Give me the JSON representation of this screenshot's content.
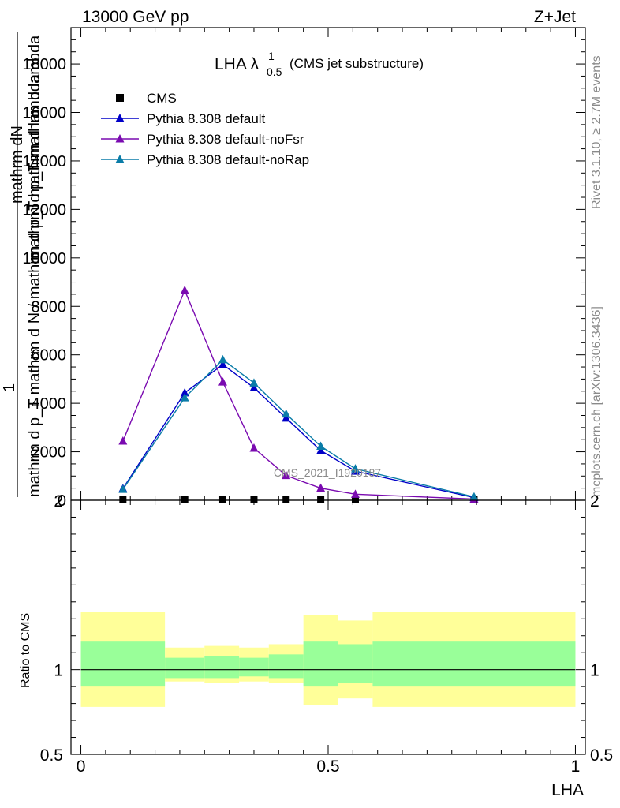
{
  "header": {
    "left": "13000 GeV pp",
    "right": "Z+Jet"
  },
  "side_labels": {
    "rivet": "Rivet 3.1.10, ≥ 2.7M events",
    "mcplots": "mcplots.cern.ch [arXiv:1306.3436]"
  },
  "watermark": "CMS_2021_I1920187",
  "chart_data": [
    {
      "type": "line",
      "title": "LHA λ",
      "title_sup": "1",
      "title_sub": "0.5",
      "title_note": "(CMS jet substructure)",
      "ylabel_top": "mathrm d^{2}N",
      "ylabel_top_display": "mathrm d N",
      "ylabel_lines": [
        "mathrm dN",
        "mathrm d p_T mathrm d lambda",
        "mathrm d p_T mathrm d N / mathrm d p_T mathrm d lambda"
      ],
      "ylabel_one": "1",
      "ylabel_bottom": "mathrm d N / mathrm d p_T",
      "ylim": [
        0,
        19500
      ],
      "yticks": [
        {
          "v": 0,
          "label": "0"
        },
        {
          "v": 2000,
          "label": "2000"
        },
        {
          "v": 4000,
          "label": "4000"
        },
        {
          "v": 6000,
          "label": "6000"
        },
        {
          "v": 8000,
          "label": "8000"
        },
        {
          "v": 10000,
          "label": "10000"
        },
        {
          "v": 12000,
          "label": "12000"
        },
        {
          "v": 14000,
          "label": "14000"
        },
        {
          "v": 16000,
          "label": "16000"
        },
        {
          "v": 18000,
          "label": "18000"
        }
      ],
      "xlim": [
        -0.02,
        1.02
      ],
      "legend": {
        "position": "top-left",
        "entries": [
          "CMS",
          "Pythia 8.308 default",
          "Pythia 8.308 default-noFsr",
          "Pythia 8.308 default-noRap"
        ]
      },
      "series": [
        {
          "name": "CMS",
          "marker": "square",
          "color": "#000000",
          "x": [
            0.085,
            0.21,
            0.287,
            0.35,
            0.415,
            0.485,
            0.555,
            0.795
          ],
          "y": [
            20,
            20,
            20,
            20,
            20,
            20,
            20,
            20
          ]
        },
        {
          "name": "Pythia 8.308 default",
          "marker": "triangle",
          "color": "#0000c8",
          "x": [
            0.085,
            0.21,
            0.287,
            0.35,
            0.415,
            0.485,
            0.555,
            0.795
          ],
          "y": [
            480,
            4430,
            5600,
            4640,
            3390,
            2050,
            1200,
            110
          ]
        },
        {
          "name": "Pythia 8.308 default-noFsr",
          "marker": "triangle",
          "color": "#7a0ab0",
          "x": [
            0.085,
            0.21,
            0.287,
            0.35,
            0.415,
            0.485,
            0.555,
            0.795
          ],
          "y": [
            2440,
            8660,
            4880,
            2150,
            1020,
            500,
            250,
            50
          ]
        },
        {
          "name": "Pythia 8.308 default-noRap",
          "marker": "triangle",
          "color": "#0a7ca8",
          "x": [
            0.085,
            0.21,
            0.287,
            0.35,
            0.415,
            0.485,
            0.555,
            0.795
          ],
          "y": [
            450,
            4230,
            5800,
            4840,
            3560,
            2230,
            1300,
            140
          ]
        }
      ]
    },
    {
      "type": "area",
      "ylabel": "Ratio to CMS",
      "xlabel": "LHA",
      "ylim": [
        0.5,
        2.0
      ],
      "xlim": [
        -0.02,
        1.02
      ],
      "yticks": [
        {
          "v": 0.5,
          "label": "0.5"
        },
        {
          "v": 1,
          "label": "1"
        },
        {
          "v": 2,
          "label": "2"
        }
      ],
      "xticks": [
        {
          "v": 0,
          "label": "0"
        },
        {
          "v": 0.5,
          "label": "0.5"
        },
        {
          "v": 1,
          "label": "1"
        }
      ],
      "reference_line": 1,
      "band_colors": {
        "outer": "#ffff99",
        "inner": "#99ff99"
      },
      "bins": [
        {
          "x0": 0.0,
          "x1": 0.17,
          "outer": [
            0.78,
            1.34
          ],
          "inner": [
            0.9,
            1.17
          ]
        },
        {
          "x0": 0.17,
          "x1": 0.25,
          "outer": [
            0.93,
            1.13
          ],
          "inner": [
            0.95,
            1.07
          ]
        },
        {
          "x0": 0.25,
          "x1": 0.32,
          "outer": [
            0.92,
            1.14
          ],
          "inner": [
            0.95,
            1.08
          ]
        },
        {
          "x0": 0.32,
          "x1": 0.38,
          "outer": [
            0.93,
            1.13
          ],
          "inner": [
            0.96,
            1.07
          ]
        },
        {
          "x0": 0.38,
          "x1": 0.45,
          "outer": [
            0.92,
            1.15
          ],
          "inner": [
            0.95,
            1.09
          ]
        },
        {
          "x0": 0.45,
          "x1": 0.52,
          "outer": [
            0.79,
            1.32
          ],
          "inner": [
            0.9,
            1.17
          ]
        },
        {
          "x0": 0.52,
          "x1": 0.59,
          "outer": [
            0.83,
            1.29
          ],
          "inner": [
            0.92,
            1.15
          ]
        },
        {
          "x0": 0.59,
          "x1": 1.0,
          "outer": [
            0.78,
            1.34
          ],
          "inner": [
            0.9,
            1.17
          ]
        }
      ]
    }
  ]
}
